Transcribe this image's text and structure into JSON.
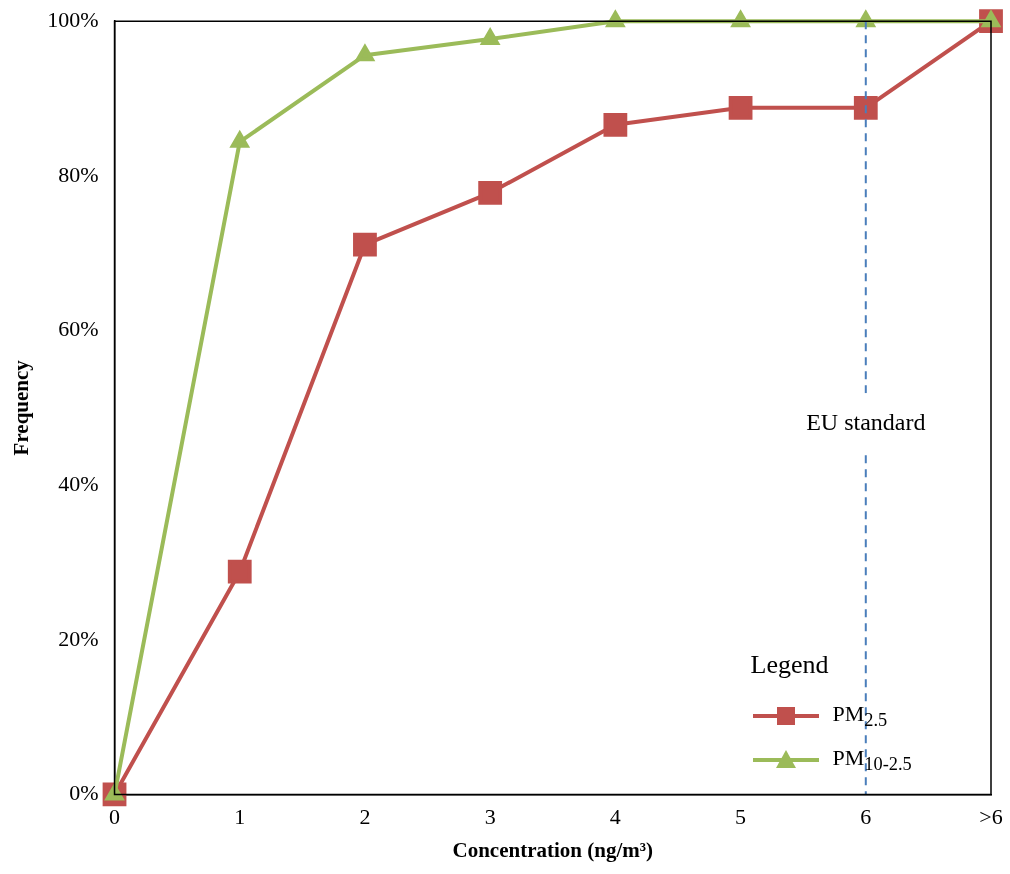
{
  "chart_data": {
    "type": "line",
    "xlabel": "Concentration (ng/m³)",
    "ylabel": "Frequency",
    "categories": [
      "0",
      "1",
      "2",
      "3",
      "4",
      "5",
      "6",
      ">6"
    ],
    "series": [
      {
        "name": "PM$_{2.5}$",
        "color": "#c0504d",
        "marker": "square",
        "values": [
          0,
          28.8,
          71.1,
          77.8,
          86.6,
          88.8,
          88.8,
          100
        ]
      },
      {
        "name": "PM$_{10-2.5}$",
        "color": "#9bbb59",
        "marker": "triangle",
        "values": [
          0,
          84.4,
          95.6,
          97.7,
          100,
          100,
          100,
          100
        ]
      }
    ],
    "ylim": [
      0,
      100
    ],
    "yticks": [
      {
        "value": 0,
        "label": "0%"
      },
      {
        "value": 20,
        "label": "20%"
      },
      {
        "value": 40,
        "label": "40%"
      },
      {
        "value": 60,
        "label": "60%"
      },
      {
        "value": 80,
        "label": "80%"
      },
      {
        "value": 100,
        "label": "100%"
      }
    ],
    "ref_lines": [
      {
        "axis": "x",
        "value": "6",
        "label": "EU standard",
        "color": "#4a7ebb",
        "line_style": "dashed"
      }
    ],
    "legend": "bottom right",
    "legend_title": "Legend",
    "grid": false,
    "line_style": "solid"
  }
}
